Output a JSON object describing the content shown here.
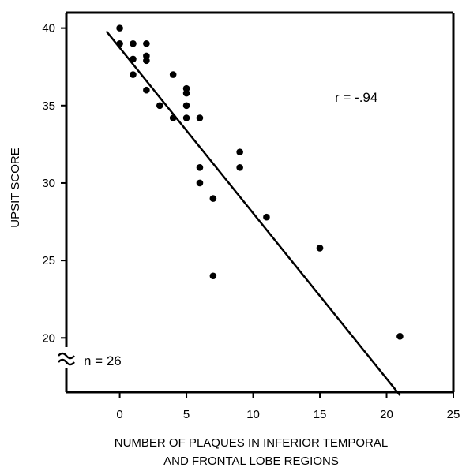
{
  "chart_data": {
    "type": "scatter",
    "title": "",
    "xlabel": [
      "NUMBER OF PLAQUES IN INFERIOR TEMPORAL",
      "AND FRONTAL LOBE REGIONS"
    ],
    "ylabel": "UPSIT SCORE",
    "xlim": [
      -4,
      25
    ],
    "ylim": [
      16.5,
      41
    ],
    "y_axis_break": true,
    "grid": false,
    "x_ticks": [
      0,
      5,
      10,
      15,
      20,
      25
    ],
    "y_ticks": [
      20,
      25,
      30,
      35,
      40
    ],
    "points": [
      {
        "x": 0,
        "y": 40
      },
      {
        "x": 0,
        "y": 39
      },
      {
        "x": 1,
        "y": 39
      },
      {
        "x": 1,
        "y": 38
      },
      {
        "x": 1,
        "y": 37
      },
      {
        "x": 2,
        "y": 39
      },
      {
        "x": 2,
        "y": 38.2
      },
      {
        "x": 2,
        "y": 37.9
      },
      {
        "x": 2,
        "y": 36
      },
      {
        "x": 3,
        "y": 35
      },
      {
        "x": 4,
        "y": 37
      },
      {
        "x": 4,
        "y": 34.2
      },
      {
        "x": 5,
        "y": 36.1
      },
      {
        "x": 5,
        "y": 35.8
      },
      {
        "x": 5,
        "y": 35
      },
      {
        "x": 5,
        "y": 34.2
      },
      {
        "x": 6,
        "y": 34.2
      },
      {
        "x": 6,
        "y": 31
      },
      {
        "x": 6,
        "y": 30
      },
      {
        "x": 7,
        "y": 29
      },
      {
        "x": 7,
        "y": 24
      },
      {
        "x": 9,
        "y": 32
      },
      {
        "x": 9,
        "y": 31
      },
      {
        "x": 11,
        "y": 27.8
      },
      {
        "x": 15,
        "y": 25.8
      },
      {
        "x": 21,
        "y": 20.1
      }
    ],
    "regression_line": {
      "x": [
        -1,
        21
      ],
      "y": [
        39.8,
        16.3
      ]
    },
    "annotations": [
      {
        "text": "r = -.94",
        "x": 18.5,
        "y": 35
      },
      {
        "text": "n = 26",
        "x": -2,
        "y": 17.4
      }
    ]
  }
}
